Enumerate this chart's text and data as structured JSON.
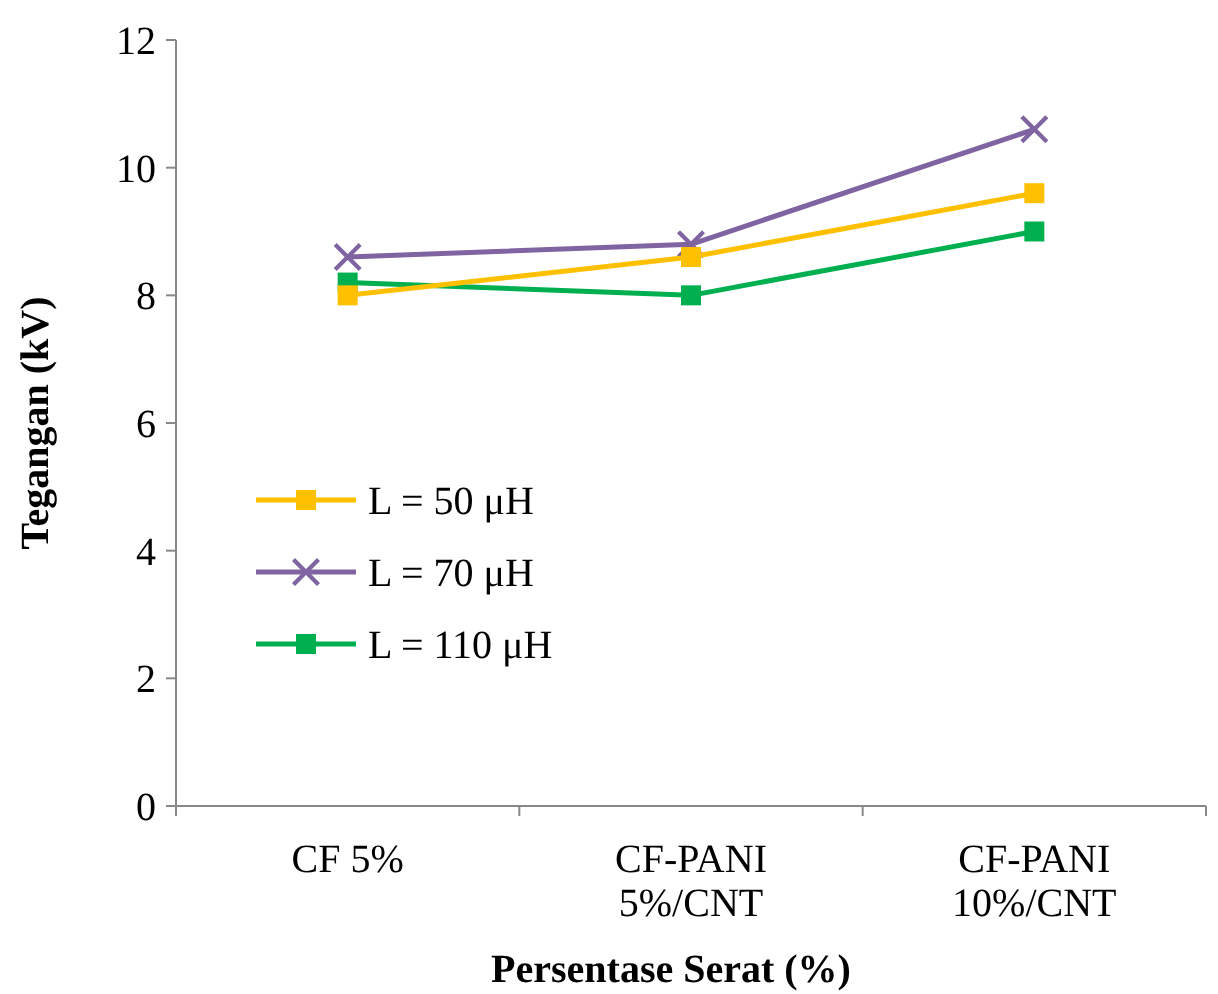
{
  "chart_data": {
    "type": "line",
    "xlabel": "Persentase Serat (%)",
    "ylabel": "Tegangan (kV)",
    "categories": [
      "CF 5%",
      "CF-PANI 5%/CNT",
      "CF-PANI 10%/CNT"
    ],
    "series": [
      {
        "name": "L = 50 μH",
        "color": "#ffc000",
        "marker": "square",
        "values": [
          8.0,
          8.6,
          9.6
        ]
      },
      {
        "name": "L = 70 μH",
        "color": "#8064a2",
        "marker": "cross",
        "values": [
          8.6,
          8.8,
          10.6
        ]
      },
      {
        "name": "L = 110 μH",
        "color": "#00b050",
        "marker": "square",
        "values": [
          8.2,
          8.0,
          9.0
        ]
      }
    ],
    "ylim": [
      0,
      12
    ],
    "yticks": [
      0,
      2,
      4,
      6,
      8,
      10,
      12
    ],
    "grid": false,
    "legend": "left",
    "line_style": "solid"
  }
}
